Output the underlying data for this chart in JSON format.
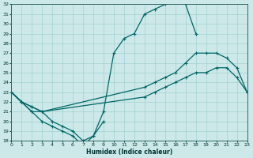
{
  "xlabel": "Humidex (Indice chaleur)",
  "ylabel": "",
  "bg_color": "#cce8e8",
  "line_color": "#006666",
  "grid_color": "#99cccc",
  "ylim": [
    18,
    32
  ],
  "xlim": [
    0,
    23
  ],
  "yticks": [
    18,
    19,
    20,
    21,
    22,
    23,
    24,
    25,
    26,
    27,
    28,
    29,
    30,
    31,
    32
  ],
  "xticks": [
    0,
    1,
    2,
    3,
    4,
    5,
    6,
    7,
    8,
    9,
    10,
    11,
    12,
    13,
    14,
    15,
    16,
    17,
    18,
    19,
    20,
    21,
    22,
    23
  ],
  "line1_x": [
    0,
    1,
    2,
    3,
    4,
    5,
    6,
    7,
    8,
    9,
    10,
    11,
    12,
    13,
    14,
    15,
    16,
    17,
    18
  ],
  "line1_y": [
    23,
    22,
    21,
    20,
    19.5,
    19,
    18.5,
    17.5,
    18.5,
    21,
    27,
    28.5,
    29,
    31,
    31.5,
    32,
    32.5,
    32,
    29
  ],
  "line2_x": [
    0,
    1,
    2,
    3,
    13,
    14,
    15,
    16,
    17,
    18,
    19,
    20,
    21,
    22,
    23
  ],
  "line2_y": [
    23,
    22,
    21.5,
    21,
    23.5,
    24,
    24.5,
    25,
    26,
    27,
    27,
    27,
    26.5,
    25.5,
    23
  ],
  "line3_x": [
    0,
    1,
    2,
    3,
    13,
    14,
    15,
    16,
    17,
    18,
    19,
    20,
    21,
    22,
    23
  ],
  "line3_y": [
    23,
    22,
    21.5,
    21,
    22.5,
    23,
    23.5,
    24,
    24.5,
    25,
    25,
    25.5,
    25.5,
    24.5,
    23
  ],
  "line4_x": [
    0,
    1,
    2,
    3,
    4,
    5,
    6,
    7,
    8,
    9
  ],
  "line4_y": [
    23,
    22,
    21,
    21,
    20,
    19.5,
    19,
    18,
    18.5,
    20
  ]
}
